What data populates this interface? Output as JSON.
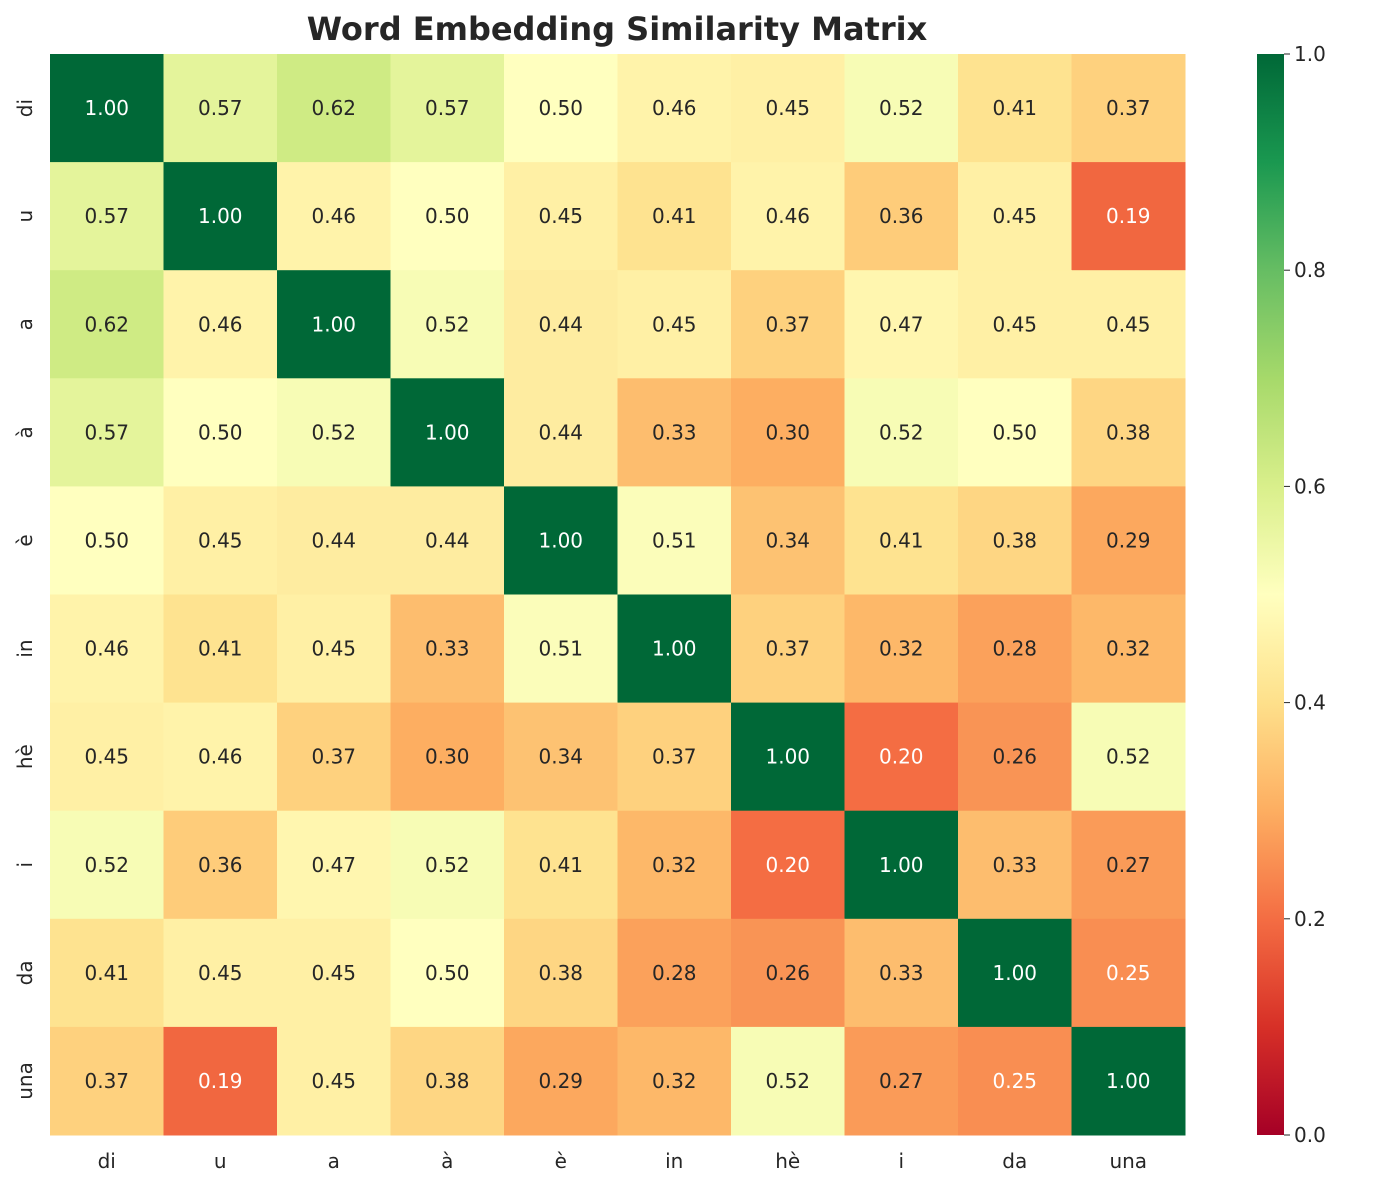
{
  "chart_data": {
    "type": "heatmap",
    "title": "Word Embedding Similarity Matrix",
    "x_labels": [
      "di",
      "u",
      "a",
      "à",
      "è",
      "in",
      "hè",
      "i",
      "da",
      "una"
    ],
    "y_labels": [
      "di",
      "u",
      "a",
      "à",
      "è",
      "in",
      "hè",
      "i",
      "da",
      "una"
    ],
    "values": [
      [
        1.0,
        0.57,
        0.62,
        0.57,
        0.5,
        0.46,
        0.45,
        0.52,
        0.41,
        0.37
      ],
      [
        0.57,
        1.0,
        0.46,
        0.5,
        0.45,
        0.41,
        0.46,
        0.36,
        0.45,
        0.19
      ],
      [
        0.62,
        0.46,
        1.0,
        0.52,
        0.44,
        0.45,
        0.37,
        0.47,
        0.45,
        0.45
      ],
      [
        0.57,
        0.5,
        0.52,
        1.0,
        0.44,
        0.33,
        0.3,
        0.52,
        0.5,
        0.38
      ],
      [
        0.5,
        0.45,
        0.44,
        0.44,
        1.0,
        0.51,
        0.34,
        0.41,
        0.38,
        0.29
      ],
      [
        0.46,
        0.41,
        0.45,
        0.33,
        0.51,
        1.0,
        0.37,
        0.32,
        0.28,
        0.32
      ],
      [
        0.45,
        0.46,
        0.37,
        0.3,
        0.34,
        0.37,
        1.0,
        0.2,
        0.26,
        0.52
      ],
      [
        0.52,
        0.36,
        0.47,
        0.52,
        0.41,
        0.32,
        0.2,
        1.0,
        0.33,
        0.27
      ],
      [
        0.41,
        0.45,
        0.45,
        0.5,
        0.38,
        0.28,
        0.26,
        0.33,
        1.0,
        0.25
      ],
      [
        0.37,
        0.19,
        0.45,
        0.38,
        0.29,
        0.32,
        0.52,
        0.27,
        0.25,
        1.0
      ]
    ],
    "annotation_format": "0.00",
    "colormap": "RdYlGn",
    "vmin": 0.0,
    "vmax": 1.0,
    "colorbar_ticks": [
      "0.0",
      "0.2",
      "0.4",
      "0.6",
      "0.8",
      "1.0"
    ],
    "grid": false
  }
}
